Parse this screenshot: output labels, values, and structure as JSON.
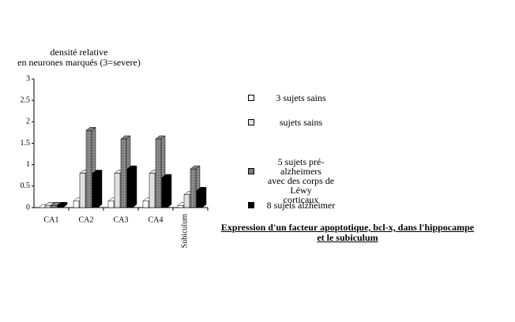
{
  "chart_data": {
    "type": "bar3d",
    "title": "Expression d'un facteur apoptotique, bcl-x, dans l'hippocampe\net le subiculum",
    "ylabel": "densité relative\nen neurones marqués (3=severe)",
    "categories": [
      "CA1",
      "CA2",
      "CA3",
      "CA4",
      "Subiculum"
    ],
    "series": [
      {
        "name": "3 sujets sains",
        "color": "#ffffff",
        "values": [
          0,
          0.15,
          0.15,
          0.15,
          0.05
        ]
      },
      {
        "name": "sujets sains",
        "color": "#e0e0e0",
        "values": [
          0.05,
          0.8,
          0.8,
          0.8,
          0.3
        ]
      },
      {
        "name": "5 sujets pré-alzheimers\navec des corps de Léwy\ncorticaux",
        "color": "#7a7a7a",
        "values": [
          0.05,
          1.8,
          1.6,
          1.6,
          0.9
        ]
      },
      {
        "name": "8 sujets alzheimer",
        "color": "#000000",
        "values": [
          0.05,
          0.8,
          0.9,
          0.7,
          0.4
        ]
      }
    ],
    "ylim": [
      0,
      3
    ],
    "yticks": [
      0,
      0.5,
      1,
      1.5,
      2,
      2.5,
      3
    ]
  }
}
